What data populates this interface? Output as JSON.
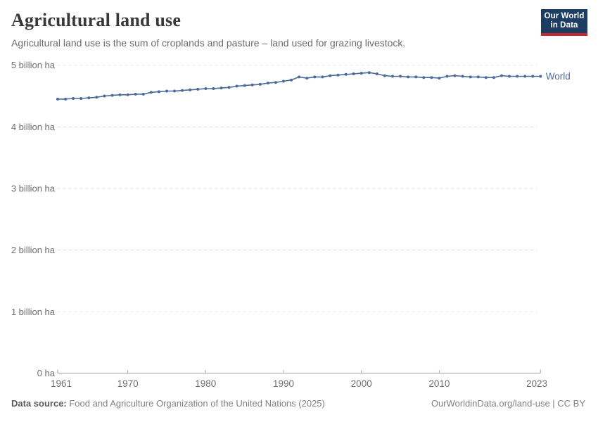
{
  "header": {
    "title": "Agricultural land use",
    "subtitle": "Agricultural land use is the sum of croplands and pasture – land used for grazing livestock.",
    "logo": {
      "line1": "Our World",
      "line2": "in Data"
    }
  },
  "chart_data": {
    "type": "line",
    "title": "Agricultural land use",
    "unit": "billion ha",
    "xlim": [
      1961,
      2023
    ],
    "ylim": [
      0,
      5
    ],
    "grid": "horizontal-dashed",
    "legend_position": "end-of-line",
    "x_ticks": [
      1961,
      1970,
      1980,
      1990,
      2000,
      2010,
      2023
    ],
    "y_ticks": [
      {
        "value": 0,
        "label": "0 ha"
      },
      {
        "value": 1,
        "label": "1 billion ha"
      },
      {
        "value": 2,
        "label": "2 billion ha"
      },
      {
        "value": 3,
        "label": "3 billion ha"
      },
      {
        "value": 4,
        "label": "4 billion ha"
      },
      {
        "value": 5,
        "label": "5 billion ha"
      }
    ],
    "x": [
      1961,
      1962,
      1963,
      1964,
      1965,
      1966,
      1967,
      1968,
      1969,
      1970,
      1971,
      1972,
      1973,
      1974,
      1975,
      1976,
      1977,
      1978,
      1979,
      1980,
      1981,
      1982,
      1983,
      1984,
      1985,
      1986,
      1987,
      1988,
      1989,
      1990,
      1991,
      1992,
      1993,
      1994,
      1995,
      1996,
      1997,
      1998,
      1999,
      2000,
      2001,
      2002,
      2003,
      2004,
      2005,
      2006,
      2007,
      2008,
      2009,
      2010,
      2011,
      2012,
      2013,
      2014,
      2015,
      2016,
      2017,
      2018,
      2019,
      2020,
      2021,
      2022,
      2023
    ],
    "series": [
      {
        "name": "World",
        "color": "#4c6a9c",
        "values": [
          4.45,
          4.45,
          4.46,
          4.46,
          4.47,
          4.48,
          4.5,
          4.51,
          4.52,
          4.52,
          4.53,
          4.53,
          4.56,
          4.57,
          4.58,
          4.58,
          4.59,
          4.6,
          4.61,
          4.62,
          4.62,
          4.63,
          4.64,
          4.66,
          4.67,
          4.68,
          4.69,
          4.71,
          4.72,
          4.74,
          4.76,
          4.81,
          4.79,
          4.81,
          4.81,
          4.83,
          4.84,
          4.85,
          4.86,
          4.87,
          4.88,
          4.86,
          4.83,
          4.82,
          4.82,
          4.81,
          4.81,
          4.8,
          4.8,
          4.79,
          4.82,
          4.83,
          4.82,
          4.81,
          4.81,
          4.8,
          4.8,
          4.83,
          4.82,
          4.82,
          4.82,
          4.82,
          4.82
        ]
      }
    ]
  },
  "footer": {
    "source_bold": "Data source:",
    "source_rest": " Food and Agriculture Organization of the United Nations (2025)",
    "credit": "OurWorldinData.org/land-use | CC BY"
  },
  "colors": {
    "line": "#4c6a9c",
    "grid": "#dddddd",
    "axis": "#a3a3a3",
    "tick_label": "#6e6e6e",
    "title": "#383838",
    "subtitle": "#6b6b6b",
    "footer": "#818181",
    "footer_bold": "#5b5b5b",
    "logo_bg": "#1d3d63",
    "logo_accent": "#c0292d",
    "logo_text": "#ffffff"
  }
}
